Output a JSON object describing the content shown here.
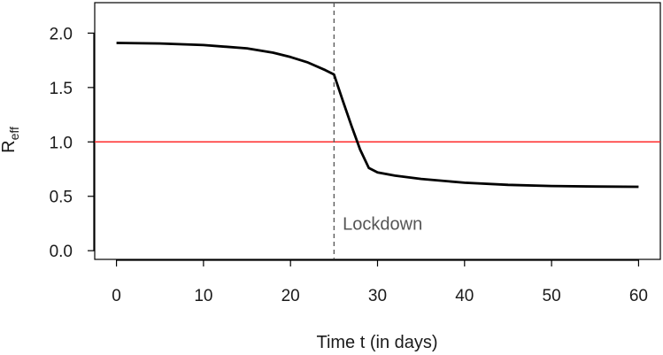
{
  "chart_data": {
    "type": "line",
    "xlabel": "Time t (in days)",
    "ylabel_main": "R",
    "ylabel_sub": "eff",
    "xlim": [
      -2.5,
      62.5
    ],
    "ylim": [
      -0.08,
      2.28
    ],
    "x_ticks": [
      0,
      10,
      20,
      30,
      40,
      50,
      60
    ],
    "x_tick_labels": [
      "0",
      "10",
      "20",
      "30",
      "40",
      "50",
      "60"
    ],
    "y_ticks": [
      0.0,
      0.5,
      1.0,
      1.5,
      2.0
    ],
    "y_tick_labels": [
      "0.0",
      "0.5",
      "1.0",
      "1.5",
      "2.0"
    ],
    "grid": false,
    "series": [
      {
        "color": "#000000",
        "x": [
          0,
          5,
          10,
          15,
          18,
          20,
          22,
          24,
          25,
          26,
          27,
          28,
          29,
          30,
          32,
          35,
          40,
          45,
          50,
          55,
          60
        ],
        "y": [
          1.91,
          1.905,
          1.89,
          1.86,
          1.82,
          1.78,
          1.73,
          1.66,
          1.62,
          1.38,
          1.15,
          0.93,
          0.76,
          0.72,
          0.69,
          0.66,
          0.625,
          0.605,
          0.595,
          0.59,
          0.587
        ]
      }
    ],
    "reference_lines": [
      {
        "orientation": "horizontal",
        "value": 1.0,
        "color": "#ff2b2b",
        "style": "solid"
      },
      {
        "orientation": "vertical",
        "value": 25,
        "color": "#555555",
        "style": "dashed"
      }
    ],
    "annotations": [
      {
        "text": "Lockdown",
        "x": 26,
        "y": 0.25
      }
    ]
  }
}
